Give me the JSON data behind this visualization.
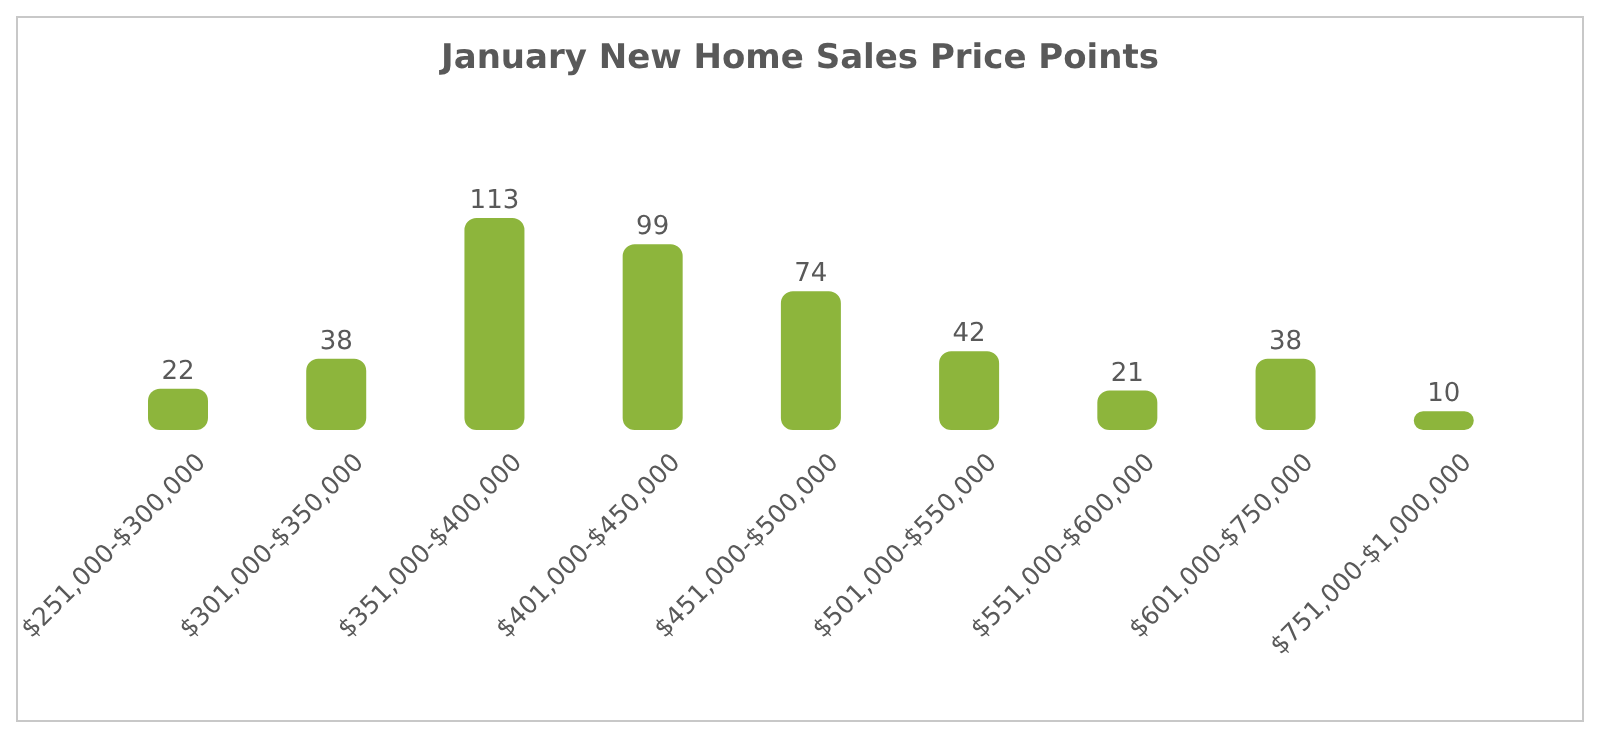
{
  "chart_data": {
    "type": "bar",
    "title": "January New Home Sales Price Points",
    "categories": [
      "$251,000-$300,000",
      "$301,000-$350,000",
      "$351,000-$400,000",
      "$401,000-$450,000",
      "$451,000-$500,000",
      "$501,000-$550,000",
      "$551,000-$600,000",
      "$601,000-$750,000",
      "$751,000-$1,000,000"
    ],
    "values": [
      22,
      38,
      113,
      99,
      74,
      42,
      21,
      38,
      10
    ],
    "color": "#8db53c",
    "data_labels": true,
    "grid": false,
    "legend": false
  }
}
